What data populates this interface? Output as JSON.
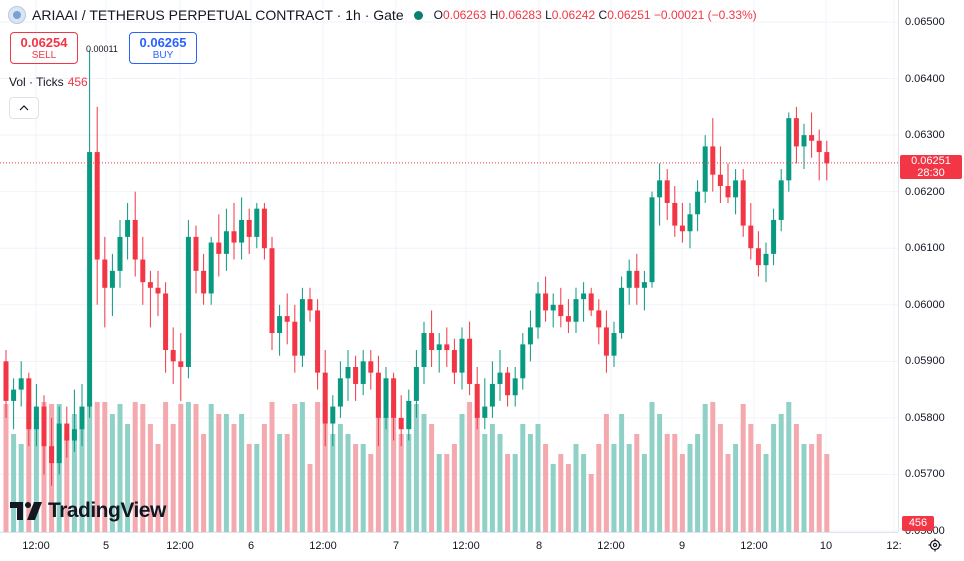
{
  "header": {
    "symbol_title": "ARIAAI / TETHERUS PERPETUAL CONTRACT · 1h · Gate",
    "ohlc": {
      "o_label": "O",
      "o_value": "0.06263",
      "h_label": "H",
      "h_value": "0.06283",
      "l_label": "L",
      "l_value": "0.06242",
      "c_label": "C",
      "c_value": "0.06251",
      "change": "−0.00021 (−0.33%)"
    }
  },
  "trade": {
    "sell_price": "0.06254",
    "sell_label": "SELL",
    "spread": "0.00011",
    "buy_price": "0.06265",
    "buy_label": "BUY"
  },
  "volume_indicator": {
    "label": "Vol · Ticks",
    "value": "456"
  },
  "branding": {
    "logo_text": "TradingView"
  },
  "price_axis": {
    "labels": [
      "0.06500",
      "0.06400",
      "0.06300",
      "0.06200",
      "0.06100",
      "0.06000",
      "0.05900",
      "0.05800",
      "0.05700",
      "0.05600"
    ],
    "last_price": "0.06251",
    "countdown": "28:30",
    "volume_last": "456"
  },
  "time_axis": {
    "labels": [
      "12:00",
      "5",
      "12:00",
      "6",
      "12:00",
      "7",
      "12:00",
      "8",
      "12:00",
      "9",
      "12:00",
      "10",
      "12:"
    ]
  },
  "colors": {
    "up": "#089981",
    "down": "#f23645",
    "up_volume": "#8fd1c6",
    "down_volume": "#f4a9af",
    "price_line": "#f23645"
  },
  "chart_data": {
    "type": "candlestick",
    "interval": "1h",
    "ylim": [
      0.056,
      0.065
    ],
    "last_price": 0.06251,
    "candles": [
      [
        0.059,
        0.0592,
        0.058,
        0.0583
      ],
      [
        0.0583,
        0.0587,
        0.0578,
        0.0585
      ],
      [
        0.0585,
        0.059,
        0.0582,
        0.0587
      ],
      [
        0.0587,
        0.0588,
        0.0575,
        0.0578
      ],
      [
        0.0578,
        0.0586,
        0.0575,
        0.0582
      ],
      [
        0.0582,
        0.0584,
        0.057,
        0.0575
      ],
      [
        0.0575,
        0.058,
        0.0568,
        0.0572
      ],
      [
        0.0572,
        0.0582,
        0.057,
        0.0579
      ],
      [
        0.0579,
        0.0582,
        0.0573,
        0.0576
      ],
      [
        0.0576,
        0.0585,
        0.0574,
        0.0578
      ],
      [
        0.0578,
        0.0586,
        0.0575,
        0.0582
      ],
      [
        0.0582,
        0.0645,
        0.058,
        0.0627
      ],
      [
        0.0627,
        0.0635,
        0.06,
        0.0608
      ],
      [
        0.0608,
        0.0612,
        0.0596,
        0.0603
      ],
      [
        0.0603,
        0.0609,
        0.0598,
        0.0606
      ],
      [
        0.0606,
        0.0615,
        0.0603,
        0.0612
      ],
      [
        0.0612,
        0.0618,
        0.0608,
        0.0615
      ],
      [
        0.0615,
        0.062,
        0.0605,
        0.0608
      ],
      [
        0.0608,
        0.0612,
        0.06,
        0.0604
      ],
      [
        0.0604,
        0.0606,
        0.0596,
        0.0603
      ],
      [
        0.0603,
        0.0606,
        0.0598,
        0.0602
      ],
      [
        0.0602,
        0.0604,
        0.0588,
        0.0592
      ],
      [
        0.0592,
        0.0596,
        0.0586,
        0.059
      ],
      [
        0.059,
        0.0595,
        0.0583,
        0.0589
      ],
      [
        0.0589,
        0.0615,
        0.0587,
        0.0612
      ],
      [
        0.0612,
        0.0614,
        0.0602,
        0.0606
      ],
      [
        0.0606,
        0.0609,
        0.06,
        0.0602
      ],
      [
        0.0602,
        0.0612,
        0.06,
        0.0611
      ],
      [
        0.0611,
        0.0616,
        0.0605,
        0.0609
      ],
      [
        0.0609,
        0.0617,
        0.0606,
        0.0613
      ],
      [
        0.0613,
        0.0618,
        0.0608,
        0.0611
      ],
      [
        0.0611,
        0.0619,
        0.0608,
        0.0615
      ],
      [
        0.0615,
        0.0617,
        0.0609,
        0.0612
      ],
      [
        0.0612,
        0.0618,
        0.061,
        0.0617
      ],
      [
        0.0617,
        0.0618,
        0.0608,
        0.061
      ],
      [
        0.061,
        0.0612,
        0.0592,
        0.0595
      ],
      [
        0.0595,
        0.06,
        0.0591,
        0.0598
      ],
      [
        0.0598,
        0.0602,
        0.0593,
        0.0597
      ],
      [
        0.0597,
        0.06,
        0.0588,
        0.0591
      ],
      [
        0.0591,
        0.0603,
        0.0589,
        0.0601
      ],
      [
        0.0601,
        0.0603,
        0.0597,
        0.0599
      ],
      [
        0.0599,
        0.0601,
        0.0585,
        0.0588
      ],
      [
        0.0588,
        0.0592,
        0.0575,
        0.0579
      ],
      [
        0.0579,
        0.0584,
        0.0575,
        0.0582
      ],
      [
        0.0582,
        0.059,
        0.058,
        0.0587
      ],
      [
        0.0587,
        0.0592,
        0.0583,
        0.0589
      ],
      [
        0.0589,
        0.0591,
        0.0583,
        0.0586
      ],
      [
        0.0586,
        0.0592,
        0.0584,
        0.059
      ],
      [
        0.059,
        0.0592,
        0.0585,
        0.0588
      ],
      [
        0.0588,
        0.0591,
        0.0575,
        0.058
      ],
      [
        0.058,
        0.0589,
        0.0578,
        0.0587
      ],
      [
        0.0587,
        0.0588,
        0.0576,
        0.058
      ],
      [
        0.058,
        0.0584,
        0.0575,
        0.0578
      ],
      [
        0.0578,
        0.0585,
        0.0576,
        0.0583
      ],
      [
        0.0583,
        0.0592,
        0.058,
        0.0589
      ],
      [
        0.0589,
        0.0597,
        0.0586,
        0.0595
      ],
      [
        0.0595,
        0.0599,
        0.0589,
        0.0592
      ],
      [
        0.0592,
        0.0595,
        0.0588,
        0.0593
      ],
      [
        0.0593,
        0.0596,
        0.0589,
        0.0592
      ],
      [
        0.0592,
        0.0594,
        0.0586,
        0.0588
      ],
      [
        0.0588,
        0.0596,
        0.0585,
        0.0594
      ],
      [
        0.0594,
        0.0597,
        0.0584,
        0.0586
      ],
      [
        0.0586,
        0.0589,
        0.0578,
        0.058
      ],
      [
        0.058,
        0.0587,
        0.0578,
        0.0582
      ],
      [
        0.0582,
        0.059,
        0.058,
        0.0586
      ],
      [
        0.0586,
        0.0592,
        0.0583,
        0.0588
      ],
      [
        0.0588,
        0.0589,
        0.0582,
        0.0584
      ],
      [
        0.0584,
        0.0589,
        0.0582,
        0.0587
      ],
      [
        0.0587,
        0.0595,
        0.0585,
        0.0593
      ],
      [
        0.0593,
        0.0599,
        0.059,
        0.0596
      ],
      [
        0.0596,
        0.0604,
        0.0594,
        0.0602
      ],
      [
        0.0602,
        0.0605,
        0.0597,
        0.0599
      ],
      [
        0.0599,
        0.0602,
        0.0596,
        0.06
      ],
      [
        0.06,
        0.0603,
        0.0596,
        0.0598
      ],
      [
        0.0598,
        0.0601,
        0.0595,
        0.0597
      ],
      [
        0.0597,
        0.0603,
        0.0595,
        0.0601
      ],
      [
        0.0601,
        0.0604,
        0.0597,
        0.0602
      ],
      [
        0.0602,
        0.0603,
        0.0598,
        0.0599
      ],
      [
        0.0599,
        0.0601,
        0.0593,
        0.0596
      ],
      [
        0.0596,
        0.0599,
        0.0588,
        0.0591
      ],
      [
        0.0591,
        0.0597,
        0.0589,
        0.0595
      ],
      [
        0.0595,
        0.0605,
        0.0594,
        0.0603
      ],
      [
        0.0603,
        0.0608,
        0.06,
        0.0606
      ],
      [
        0.0606,
        0.0609,
        0.06,
        0.0603
      ],
      [
        0.0603,
        0.0606,
        0.0599,
        0.0604
      ],
      [
        0.0604,
        0.062,
        0.0603,
        0.0619
      ],
      [
        0.0619,
        0.0625,
        0.0614,
        0.0622
      ],
      [
        0.0622,
        0.0624,
        0.0615,
        0.0618
      ],
      [
        0.0618,
        0.0621,
        0.0612,
        0.0614
      ],
      [
        0.0614,
        0.0618,
        0.0611,
        0.0613
      ],
      [
        0.0613,
        0.0618,
        0.061,
        0.0616
      ],
      [
        0.0616,
        0.0622,
        0.0613,
        0.062
      ],
      [
        0.062,
        0.063,
        0.0618,
        0.0628
      ],
      [
        0.0628,
        0.0633,
        0.062,
        0.0623
      ],
      [
        0.0623,
        0.0628,
        0.0618,
        0.0621
      ],
      [
        0.0621,
        0.0625,
        0.0618,
        0.0619
      ],
      [
        0.0619,
        0.0624,
        0.0616,
        0.0622
      ],
      [
        0.0622,
        0.0624,
        0.0612,
        0.0614
      ],
      [
        0.0614,
        0.0618,
        0.0608,
        0.061
      ],
      [
        0.061,
        0.0613,
        0.0605,
        0.0607
      ],
      [
        0.0607,
        0.0611,
        0.0604,
        0.0609
      ],
      [
        0.0609,
        0.0617,
        0.0607,
        0.0615
      ],
      [
        0.0615,
        0.0624,
        0.0613,
        0.0622
      ],
      [
        0.0622,
        0.0634,
        0.062,
        0.0633
      ],
      [
        0.0633,
        0.0635,
        0.0625,
        0.0628
      ],
      [
        0.0628,
        0.0632,
        0.0624,
        0.063
      ],
      [
        0.063,
        0.0634,
        0.0626,
        0.0629
      ],
      [
        0.0629,
        0.0631,
        0.0622,
        0.0627
      ],
      [
        0.0627,
        0.0629,
        0.0622,
        0.0625
      ]
    ]
  }
}
